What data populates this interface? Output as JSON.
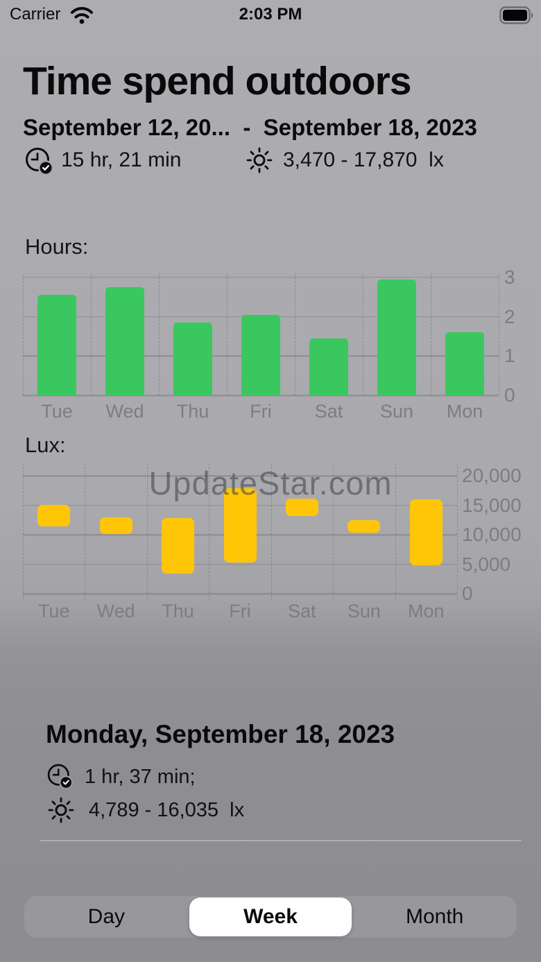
{
  "status_bar": {
    "carrier": "Carrier",
    "time": "2:03 PM",
    "wifi_icon": "wifi",
    "battery_icon": "battery-full"
  },
  "header": {
    "title": "Time spend outdoors",
    "date_range": "September 12, 20...  -  September 18, 2023",
    "duration": "15 hr, 21 min",
    "lux_range": "3,470 - 17,870  lx",
    "duration_icon": "clock-badge-checkmark",
    "lux_icon": "sun"
  },
  "watermark": {
    "text": "UpdateStar.com"
  },
  "chart_data": [
    {
      "type": "bar",
      "title": "Hours:",
      "categories": [
        "Tue",
        "Wed",
        "Thu",
        "Fri",
        "Sat",
        "Sun",
        "Mon"
      ],
      "values": [
        2.55,
        2.75,
        1.85,
        2.05,
        1.45,
        2.95,
        1.6
      ],
      "ylabel": "hours",
      "ylim": [
        0,
        3
      ],
      "yticks": [
        {
          "v": 0,
          "label": "0"
        },
        {
          "v": 1,
          "label": "1"
        },
        {
          "v": 2,
          "label": "2"
        },
        {
          "v": 3,
          "label": "3"
        }
      ],
      "bar_color": "#3bc75f",
      "grid": "horizontal solid, vertical dashed",
      "axis_side": "right"
    },
    {
      "type": "bar",
      "subtype": "floating-range",
      "title": "Lux:",
      "categories": [
        "Tue",
        "Wed",
        "Thu",
        "Fri",
        "Sat",
        "Sun",
        "Mon"
      ],
      "series": [
        {
          "name": "min lux",
          "values": [
            11400,
            10100,
            3470,
            5340,
            13150,
            10350,
            4789
          ]
        },
        {
          "name": "max lux",
          "values": [
            15050,
            12950,
            12800,
            17870,
            16100,
            12500,
            16035
          ]
        }
      ],
      "ylabel": "lux",
      "ylim": [
        0,
        20000
      ],
      "yticks": [
        {
          "v": 0,
          "label": "0"
        },
        {
          "v": 5000,
          "label": "5,000"
        },
        {
          "v": 10000,
          "label": "10,000"
        },
        {
          "v": 15000,
          "label": "15,000"
        },
        {
          "v": 20000,
          "label": "20,000"
        }
      ],
      "bar_color": "#ffc608",
      "grid": "horizontal solid, vertical dashed",
      "axis_side": "right"
    }
  ],
  "detail": {
    "heading": "Monday, September 18, 2023",
    "duration": "1 hr, 37 min;",
    "lux_range": "4,789 - 16,035  lx"
  },
  "segmented": {
    "options": [
      "Day",
      "Week",
      "Month"
    ],
    "selected": "Week",
    "thumb_color": "#fefefe"
  }
}
